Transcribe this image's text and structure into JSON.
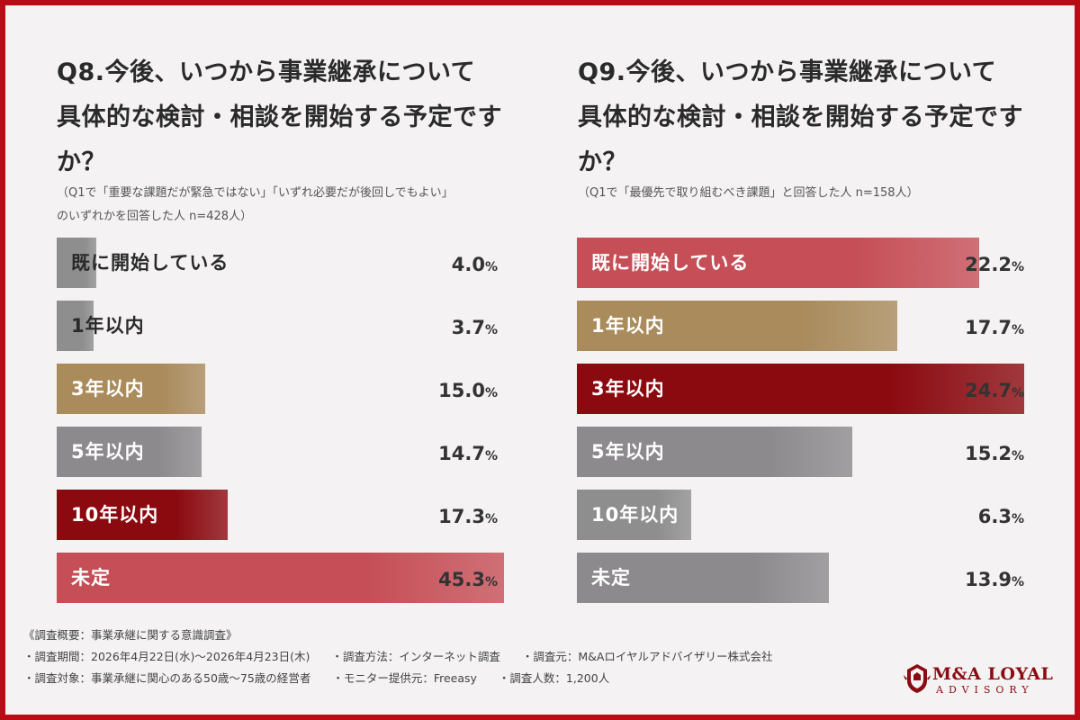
{
  "chart_data": [
    {
      "type": "bar",
      "title_lines": [
        "Q8.今後、いつから事業継承について",
        "具体的な検討・相談を開始する予定です",
        "か？"
      ],
      "note_lines": [
        "（Q1で「重要な課題だが緊急ではない」「いずれ必要だが後回しでもよい」",
        "のいずれかを回答した人 n=428人）"
      ],
      "unit": "%",
      "xlim": [
        0,
        45.3
      ],
      "categories": [
        "既に開始している",
        "1年以内",
        "3年以内",
        "5年以内",
        "10年以内",
        "未定"
      ],
      "values": [
        4.0,
        3.7,
        15.0,
        14.7,
        17.3,
        45.3
      ],
      "value_labels": [
        "4.0",
        "3.7",
        "15.0",
        "14.7",
        "17.3",
        "45.3"
      ],
      "colors": [
        "#8e8e8e",
        "#8e8e8e",
        "#a98b5c",
        "#8c8a8c",
        "#8b0a10",
        "#c64f57"
      ],
      "label_colors": [
        "#2a2a2a",
        "#2a2a2a",
        "#ffffff",
        "#ffffff",
        "#ffffff",
        "#ffffff"
      ]
    },
    {
      "type": "bar",
      "title_lines": [
        "Q9.今後、いつから事業継承について",
        "具体的な検討・相談を開始する予定です",
        "か？"
      ],
      "note_lines": [
        "（Q1で「最優先で取り組むべき課題」と回答した人 n=158人）"
      ],
      "unit": "%",
      "xlim": [
        0,
        24.7
      ],
      "categories": [
        "既に開始している",
        "1年以内",
        "3年以内",
        "5年以内",
        "10年以内",
        "未定"
      ],
      "values": [
        22.2,
        17.7,
        24.7,
        15.2,
        6.3,
        13.9
      ],
      "value_labels": [
        "22.2",
        "17.7",
        "24.7",
        "15.2",
        "6.3",
        "13.9"
      ],
      "colors": [
        "#c64f57",
        "#a98b5c",
        "#8b0a10",
        "#8c8a8c",
        "#8e8e8e",
        "#8c8a8c"
      ],
      "label_colors": [
        "#ffffff",
        "#ffffff",
        "#ffffff",
        "#ffffff",
        "#ffffff",
        "#ffffff"
      ]
    }
  ],
  "footer": {
    "heading": "《調査概要：事業承継に関する意識調査》",
    "period": "・調査期間：2026年4月22日(水)～2026年4月23日(木)",
    "method": "・調査方法：インターネット調査",
    "source": "・調査元：M&Aロイヤルアドバイザリー株式会社",
    "target": "・調査対象：事業承継に関心のある50歳～75歳の経営者",
    "monitor": "・モニター提供元：Freeasy",
    "count": "・調査人数：1,200人"
  },
  "logo": {
    "name": "M&A LOYAL",
    "sub": "ADVISORY",
    "brand_color": "#8a0b12"
  }
}
